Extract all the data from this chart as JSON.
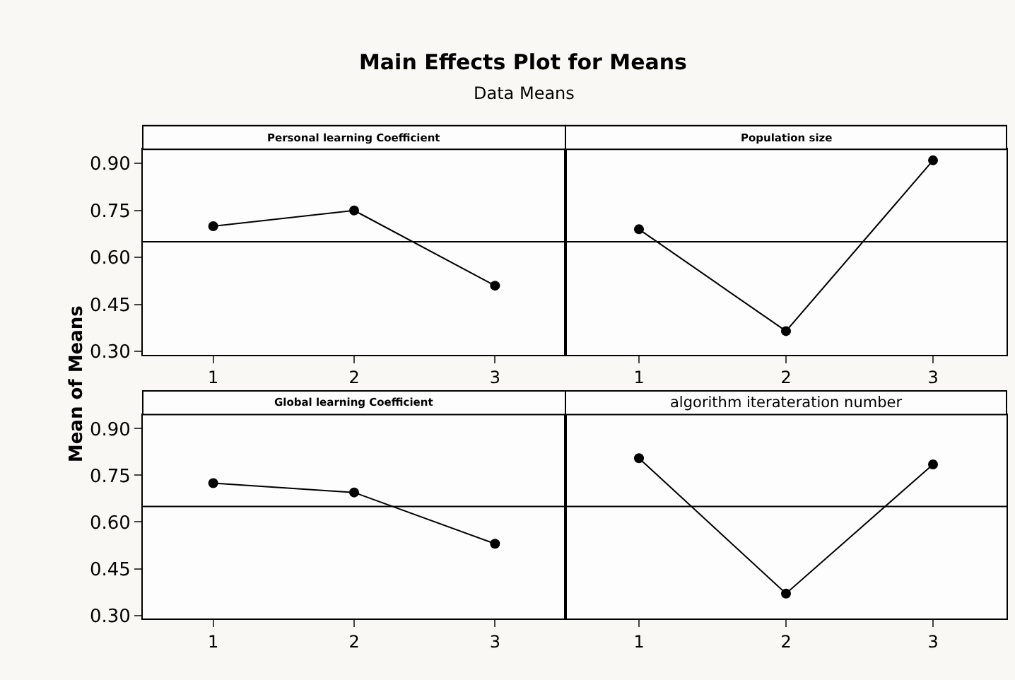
{
  "chart_data": [
    {
      "type": "other",
      "title": "Main Effects Plot for Means",
      "subtitle": "Data Means",
      "ylabel": "Mean of Means"
    },
    {
      "type": "line",
      "title": "Personal learning Coefficient",
      "categories": [
        "1",
        "2",
        "3"
      ],
      "series": [
        {
          "color": "#000000",
          "values": [
            0.7,
            0.75,
            0.51
          ]
        }
      ],
      "ylim": [
        0.29,
        0.945
      ],
      "yticks": [
        {
          "value": 0.3,
          "label": "0.30"
        },
        {
          "value": 0.45,
          "label": "0.45"
        },
        {
          "value": 0.6,
          "label": "0.60"
        },
        {
          "value": 0.75,
          "label": "0.75"
        },
        {
          "value": 0.9,
          "label": "0.90"
        }
      ],
      "ref_lines": [
        {
          "axis": "y",
          "value": 0.65,
          "color": "#000000"
        }
      ],
      "marker": "circle",
      "line_style": "solid"
    },
    {
      "type": "line",
      "title": "Population size",
      "categories": [
        "1",
        "2",
        "3"
      ],
      "series": [
        {
          "color": "#000000",
          "values": [
            0.69,
            0.365,
            0.91
          ]
        }
      ],
      "ylim": [
        0.29,
        0.945
      ],
      "ref_lines": [
        {
          "axis": "y",
          "value": 0.65,
          "color": "#000000"
        }
      ],
      "marker": "circle",
      "line_style": "solid",
      "tick_labels": "x"
    },
    {
      "type": "line",
      "title": "Global learning Coefficient",
      "categories": [
        "1",
        "2",
        "3"
      ],
      "series": [
        {
          "color": "#000000",
          "values": [
            0.725,
            0.695,
            0.53
          ]
        }
      ],
      "ylim": [
        0.29,
        0.945
      ],
      "yticks": [
        {
          "value": 0.3,
          "label": "0.30"
        },
        {
          "value": 0.45,
          "label": "0.45"
        },
        {
          "value": 0.6,
          "label": "0.60"
        },
        {
          "value": 0.75,
          "label": "0.75"
        },
        {
          "value": 0.9,
          "label": "0.90"
        }
      ],
      "ref_lines": [
        {
          "axis": "y",
          "value": 0.65,
          "color": "#000000"
        }
      ],
      "marker": "circle",
      "line_style": "solid"
    },
    {
      "type": "line",
      "title": "algorithm iterateration number",
      "categories": [
        "1",
        "2",
        "3"
      ],
      "series": [
        {
          "color": "#000000",
          "values": [
            0.805,
            0.37,
            0.785
          ]
        }
      ],
      "ylim": [
        0.29,
        0.945
      ],
      "ref_lines": [
        {
          "axis": "y",
          "value": 0.65,
          "color": "#000000"
        }
      ],
      "marker": "circle",
      "line_style": "solid",
      "tick_labels": "x"
    }
  ]
}
